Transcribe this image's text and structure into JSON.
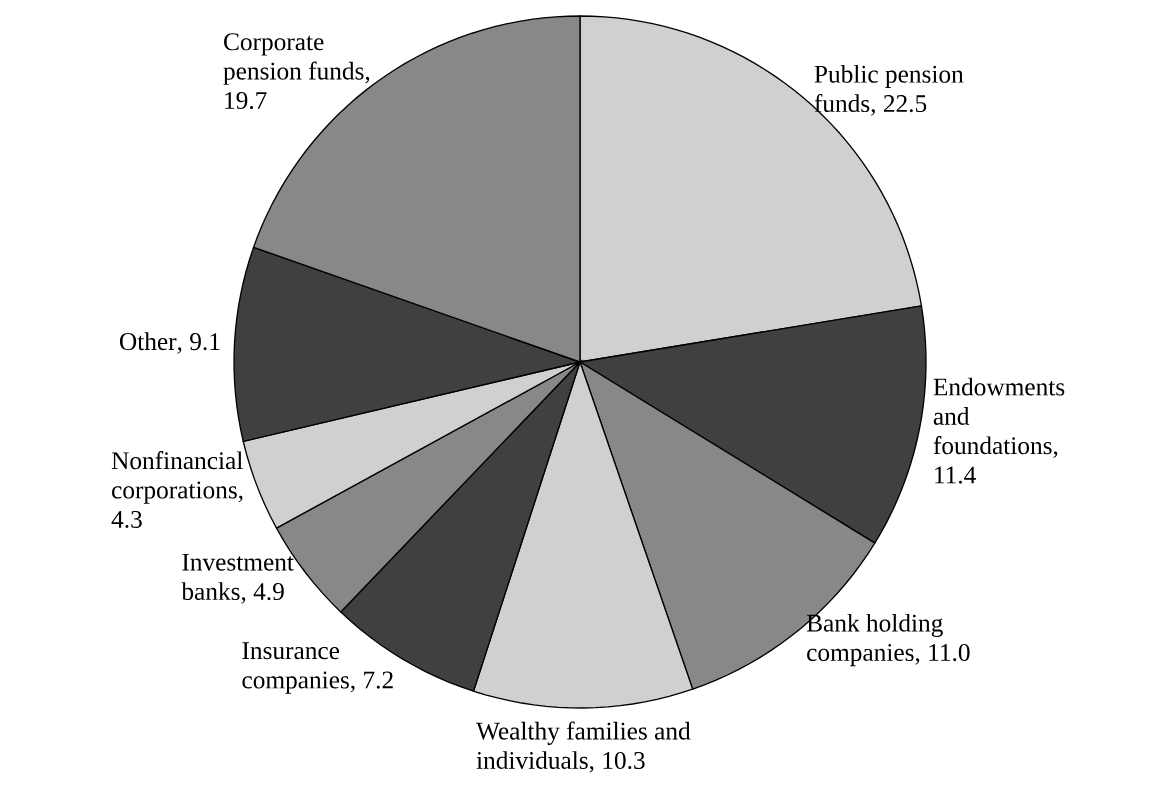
{
  "chart_data": {
    "type": "pie",
    "categories": [
      "Public pension funds",
      "Endowments and foundations",
      "Bank holding companies",
      "Wealthy families and individuals",
      "Insurance companies",
      "Investment banks",
      "Nonfinancial corporations",
      "Other",
      "Corporate pension funds"
    ],
    "value_labels": [
      ", 22.5",
      ", 11.4",
      ", 11.0",
      ", 10.3",
      ", 7.2",
      ", 4.9",
      ", 4.3",
      ", 9.1",
      ", 19.7"
    ],
    "values": [
      22.5,
      11.4,
      11.0,
      10.3,
      7.2,
      4.9,
      4.3,
      9.1,
      19.7
    ],
    "colors": [
      "#d0d0d0",
      "#404040",
      "#888888",
      "#d0d0d0",
      "#404040",
      "#888888",
      "#d0d0d0",
      "#404040",
      "#888888"
    ],
    "data_labels": true
  }
}
